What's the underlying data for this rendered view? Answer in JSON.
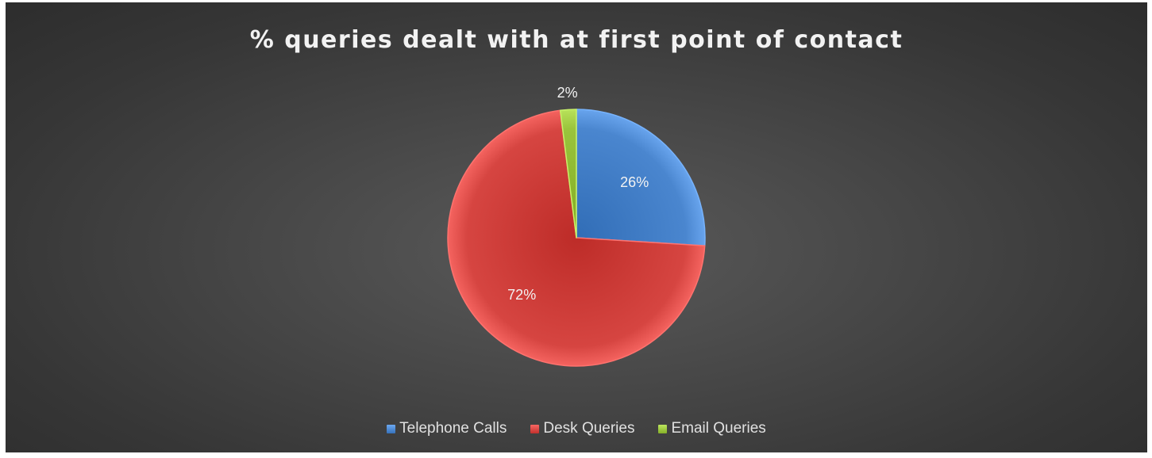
{
  "chart_data": {
    "type": "pie",
    "title": "% queries dealt with at first point of contact",
    "slices": [
      {
        "label": "Telephone Calls",
        "value": 26,
        "display": "26%",
        "color": "#4a86cf"
      },
      {
        "label": "Desk Queries",
        "value": 72,
        "display": "72%",
        "color": "#d64541"
      },
      {
        "label": "Email Queries",
        "value": 2,
        "display": "2%",
        "color": "#9ac43c"
      }
    ],
    "legend_position": "bottom"
  }
}
